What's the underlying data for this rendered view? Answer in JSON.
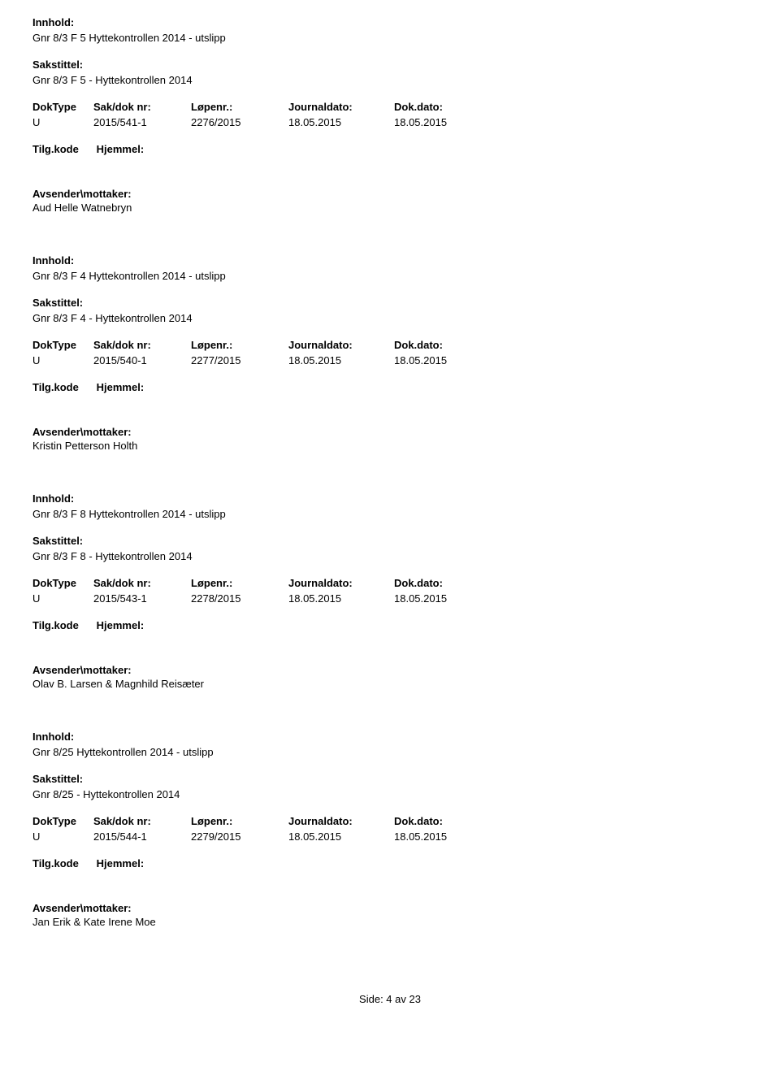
{
  "labels": {
    "innhold": "Innhold:",
    "sakstittel": "Sakstittel:",
    "doktype": "DokType",
    "saknr": "Sak/dok nr:",
    "lopenr": "Løpenr.:",
    "journaldato": "Journaldato:",
    "dokdato": "Dok.dato:",
    "tilgkode": "Tilg.kode",
    "hjemmel": "Hjemmel:",
    "avsender": "Avsender\\mottaker:"
  },
  "entries": [
    {
      "innhold": "Gnr 8/3 F 5  Hyttekontrollen 2014 - utslipp",
      "sakstittel": "Gnr 8/3 F 5 - Hyttekontrollen 2014",
      "doktype": "U",
      "saknr": "2015/541-1",
      "lopenr": "2276/2015",
      "journaldato": "18.05.2015",
      "dokdato": "18.05.2015",
      "avsender": "Aud Helle Watnebryn"
    },
    {
      "innhold": "Gnr 8/3 F 4  Hyttekontrollen 2014 - utslipp",
      "sakstittel": "Gnr 8/3 F 4 - Hyttekontrollen 2014",
      "doktype": "U",
      "saknr": "2015/540-1",
      "lopenr": "2277/2015",
      "journaldato": "18.05.2015",
      "dokdato": "18.05.2015",
      "avsender": "Kristin Petterson Holth"
    },
    {
      "innhold": "Gnr 8/3 F 8  Hyttekontrollen 2014 - utslipp",
      "sakstittel": "Gnr 8/3 F 8 - Hyttekontrollen 2014",
      "doktype": "U",
      "saknr": "2015/543-1",
      "lopenr": "2278/2015",
      "journaldato": "18.05.2015",
      "dokdato": "18.05.2015",
      "avsender": "Olav B. Larsen & Magnhild Reisæter"
    },
    {
      "innhold": "Gnr 8/25  Hyttekontrollen 2014 - utslipp",
      "sakstittel": "Gnr 8/25 - Hyttekontrollen 2014",
      "doktype": "U",
      "saknr": "2015/544-1",
      "lopenr": "2279/2015",
      "journaldato": "18.05.2015",
      "dokdato": "18.05.2015",
      "avsender": "Jan Erik & Kate Irene Moe"
    }
  ],
  "footer": "Side: 4 av 23"
}
